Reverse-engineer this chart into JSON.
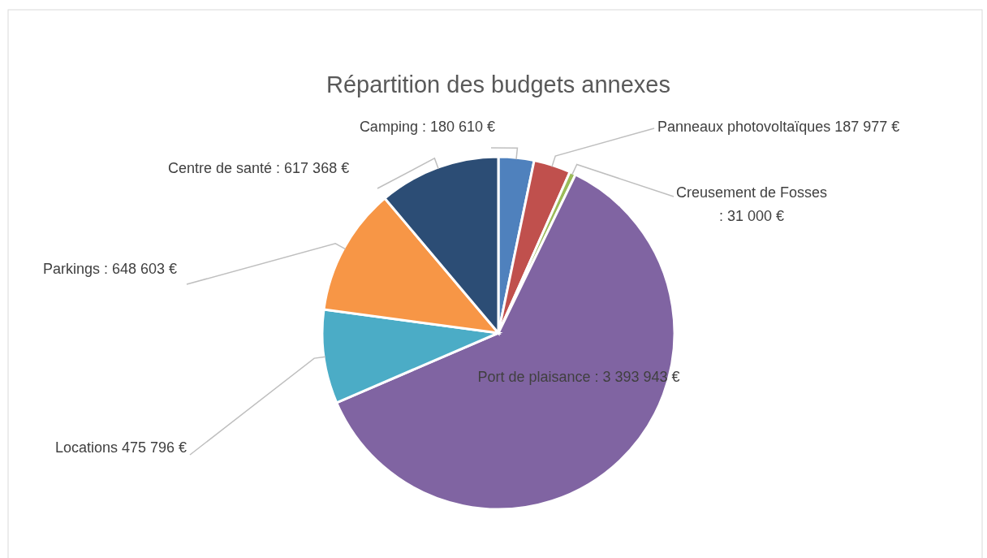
{
  "chart_data": {
    "type": "pie",
    "title": "Répartition des budgets annexes",
    "categories": [
      "Camping",
      "Panneaux photovoltaïques",
      "Creusement de Fosses",
      "Port de plaisance",
      "Locations",
      "Parkings",
      "Centre de santé"
    ],
    "values": [
      180610,
      187977,
      31000,
      3393943,
      475796,
      648603,
      617368
    ],
    "colors": [
      "#4f81bd",
      "#c0504d",
      "#9bbb59",
      "#8064a2",
      "#4bacc6",
      "#f79646",
      "#2c4d75"
    ],
    "value_labels": [
      ":  180 610 €",
      " 187 977 €",
      ":  31 000 €",
      ":  3 393 943 €",
      " 475 796 €",
      ":  648 603 €",
      ":  617 368 €"
    ],
    "legend": false
  }
}
